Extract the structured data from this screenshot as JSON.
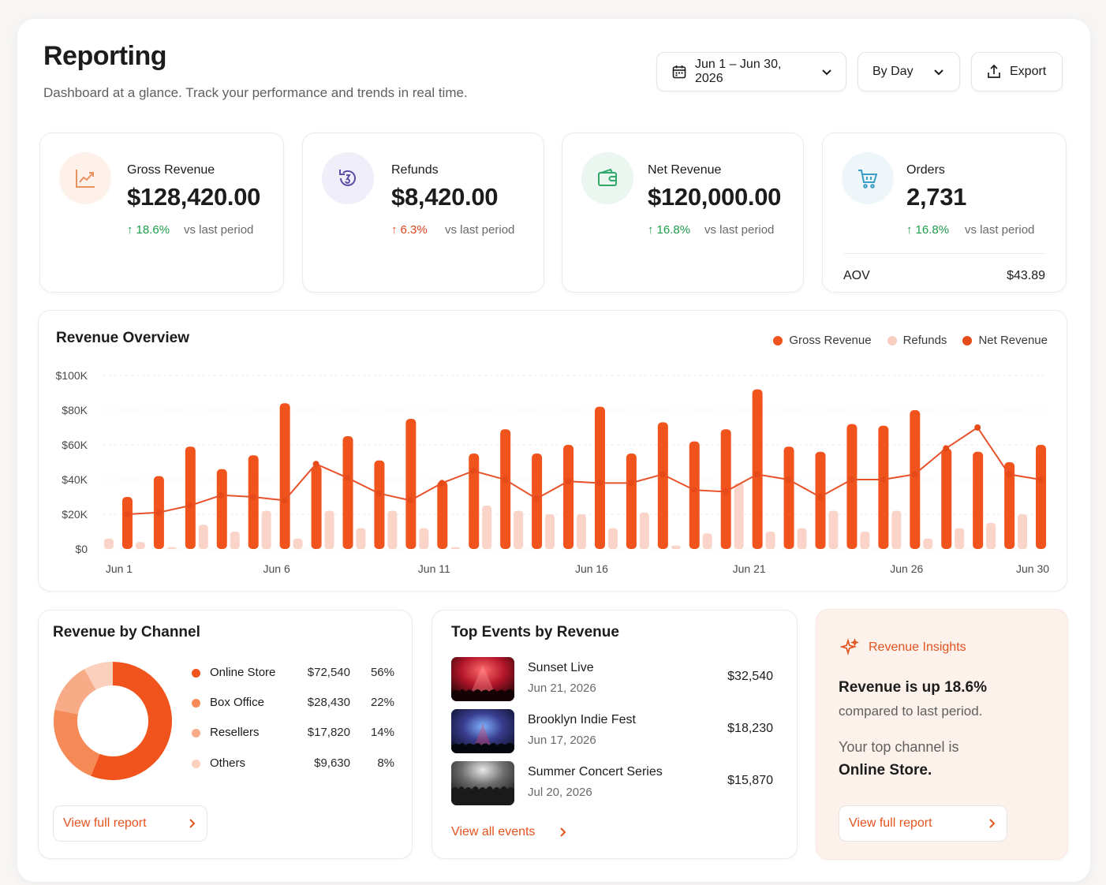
{
  "header": {
    "title": "Reporting",
    "subtitle": "Dashboard at a glance. Track your performance and trends in real time.",
    "date_range": "Jun 1 – Jun 30, 2026",
    "granularity": "By Day",
    "export_label": "Export"
  },
  "kpis": {
    "gross": {
      "label": "Gross Revenue",
      "value": "$128,420.00",
      "delta": "18.6%",
      "vs": "vs last period",
      "icon": "trend-up-icon"
    },
    "refunds": {
      "label": "Refunds",
      "value": "$8,420.00",
      "delta": "6.3%",
      "vs": "vs last period",
      "icon": "refund-icon"
    },
    "net": {
      "label": "Net Revenue",
      "value": "$120,000.00",
      "delta": "16.8%",
      "vs": "vs last period",
      "icon": "wallet-icon"
    },
    "orders": {
      "label": "Orders",
      "value": "2,731",
      "delta": "16.8%",
      "vs": "vs last period",
      "icon": "cart-icon",
      "aov_label": "AOV",
      "aov_value": "$43.89"
    }
  },
  "colors": {
    "accent": "#f0531c",
    "refunds": "#f9cdbf",
    "positive": "#1f9d4a",
    "negative": "#e2431e"
  },
  "chart_data": {
    "type": "bar",
    "title": "Revenue Overview",
    "legend": [
      "Gross Revenue",
      "Refunds",
      "Net Revenue"
    ],
    "legend_position": "top-right",
    "y_ticks": [
      "$100K",
      "$80K",
      "$60K",
      "$40K",
      "$20K",
      "$0"
    ],
    "x_ticks": [
      {
        "day": 1,
        "label": "Jun 1"
      },
      {
        "day": 6,
        "label": "Jun 6"
      },
      {
        "day": 11,
        "label": "Jun 11"
      },
      {
        "day": 16,
        "label": "Jun 16"
      },
      {
        "day": 21,
        "label": "Jun 21"
      },
      {
        "day": 26,
        "label": "Jun 26"
      },
      {
        "day": 30,
        "label": "Jun 30"
      }
    ],
    "ylim": [
      0,
      100000
    ],
    "grid": true,
    "x": [
      1,
      2,
      3,
      4,
      5,
      6,
      7,
      8,
      9,
      10,
      11,
      12,
      13,
      14,
      15,
      16,
      17,
      18,
      19,
      20,
      21,
      22,
      23,
      24,
      25,
      26,
      27,
      28,
      29,
      30
    ],
    "series": [
      {
        "name": "Gross Revenue",
        "type": "bar",
        "values": [
          30000,
          42000,
          59000,
          46000,
          54000,
          84000,
          48000,
          65000,
          51000,
          75000,
          39000,
          55000,
          69000,
          55000,
          60000,
          82000,
          55000,
          73000,
          62000,
          69000,
          92000,
          59000,
          56000,
          72000,
          71000,
          80000,
          58000,
          56000,
          50000,
          60000
        ]
      },
      {
        "name": "Refunds",
        "type": "bar",
        "values": [
          6000,
          4000,
          1000,
          14000,
          10000,
          22000,
          6000,
          22000,
          12000,
          22000,
          12000,
          1000,
          25000,
          22000,
          20000,
          20000,
          12000,
          21000,
          2000,
          9000,
          38000,
          10000,
          12000,
          22000,
          10000,
          22000,
          6000,
          12000,
          15000,
          20000
        ]
      },
      {
        "name": "Net Revenue",
        "type": "line",
        "values": [
          20000,
          21000,
          25000,
          31000,
          30000,
          28000,
          49000,
          41000,
          32000,
          28000,
          38000,
          45000,
          40000,
          29000,
          39000,
          38000,
          38000,
          43000,
          34000,
          33000,
          43000,
          40000,
          30000,
          40000,
          40000,
          43000,
          58000,
          70000,
          43000,
          40000
        ]
      }
    ]
  },
  "channels": {
    "title": "Revenue by Channel",
    "items": [
      {
        "name": "Online Store",
        "value": "$72,540",
        "pct": "56%",
        "share": 56,
        "color": "#f0531c"
      },
      {
        "name": "Box Office",
        "value": "$28,430",
        "pct": "22%",
        "share": 22,
        "color": "#f58a57"
      },
      {
        "name": "Resellers",
        "value": "$17,820",
        "pct": "14%",
        "share": 14,
        "color": "#f8ab87"
      },
      {
        "name": "Others",
        "value": "$9,630",
        "pct": "8%",
        "share": 8,
        "color": "#fbd0bd"
      }
    ],
    "link_label": "View full report"
  },
  "events": {
    "title": "Top Events by Revenue",
    "items": [
      {
        "name": "Sunset Live",
        "date": "Jun 21, 2026",
        "amount": "$32,540"
      },
      {
        "name": "Brooklyn Indie Fest",
        "date": "Jun 17, 2026",
        "amount": "$18,230"
      },
      {
        "name": "Summer Concert Series",
        "date": "Jul 20, 2026",
        "amount": "$15,870"
      }
    ],
    "link_label": "View all events"
  },
  "insights": {
    "title": "Revenue Insights",
    "headline": "Revenue is up 18.6%",
    "sub": "compared to last period.",
    "channel_text": "Your top channel is",
    "channel_name": "Online Store.",
    "link_label": "View full report"
  }
}
